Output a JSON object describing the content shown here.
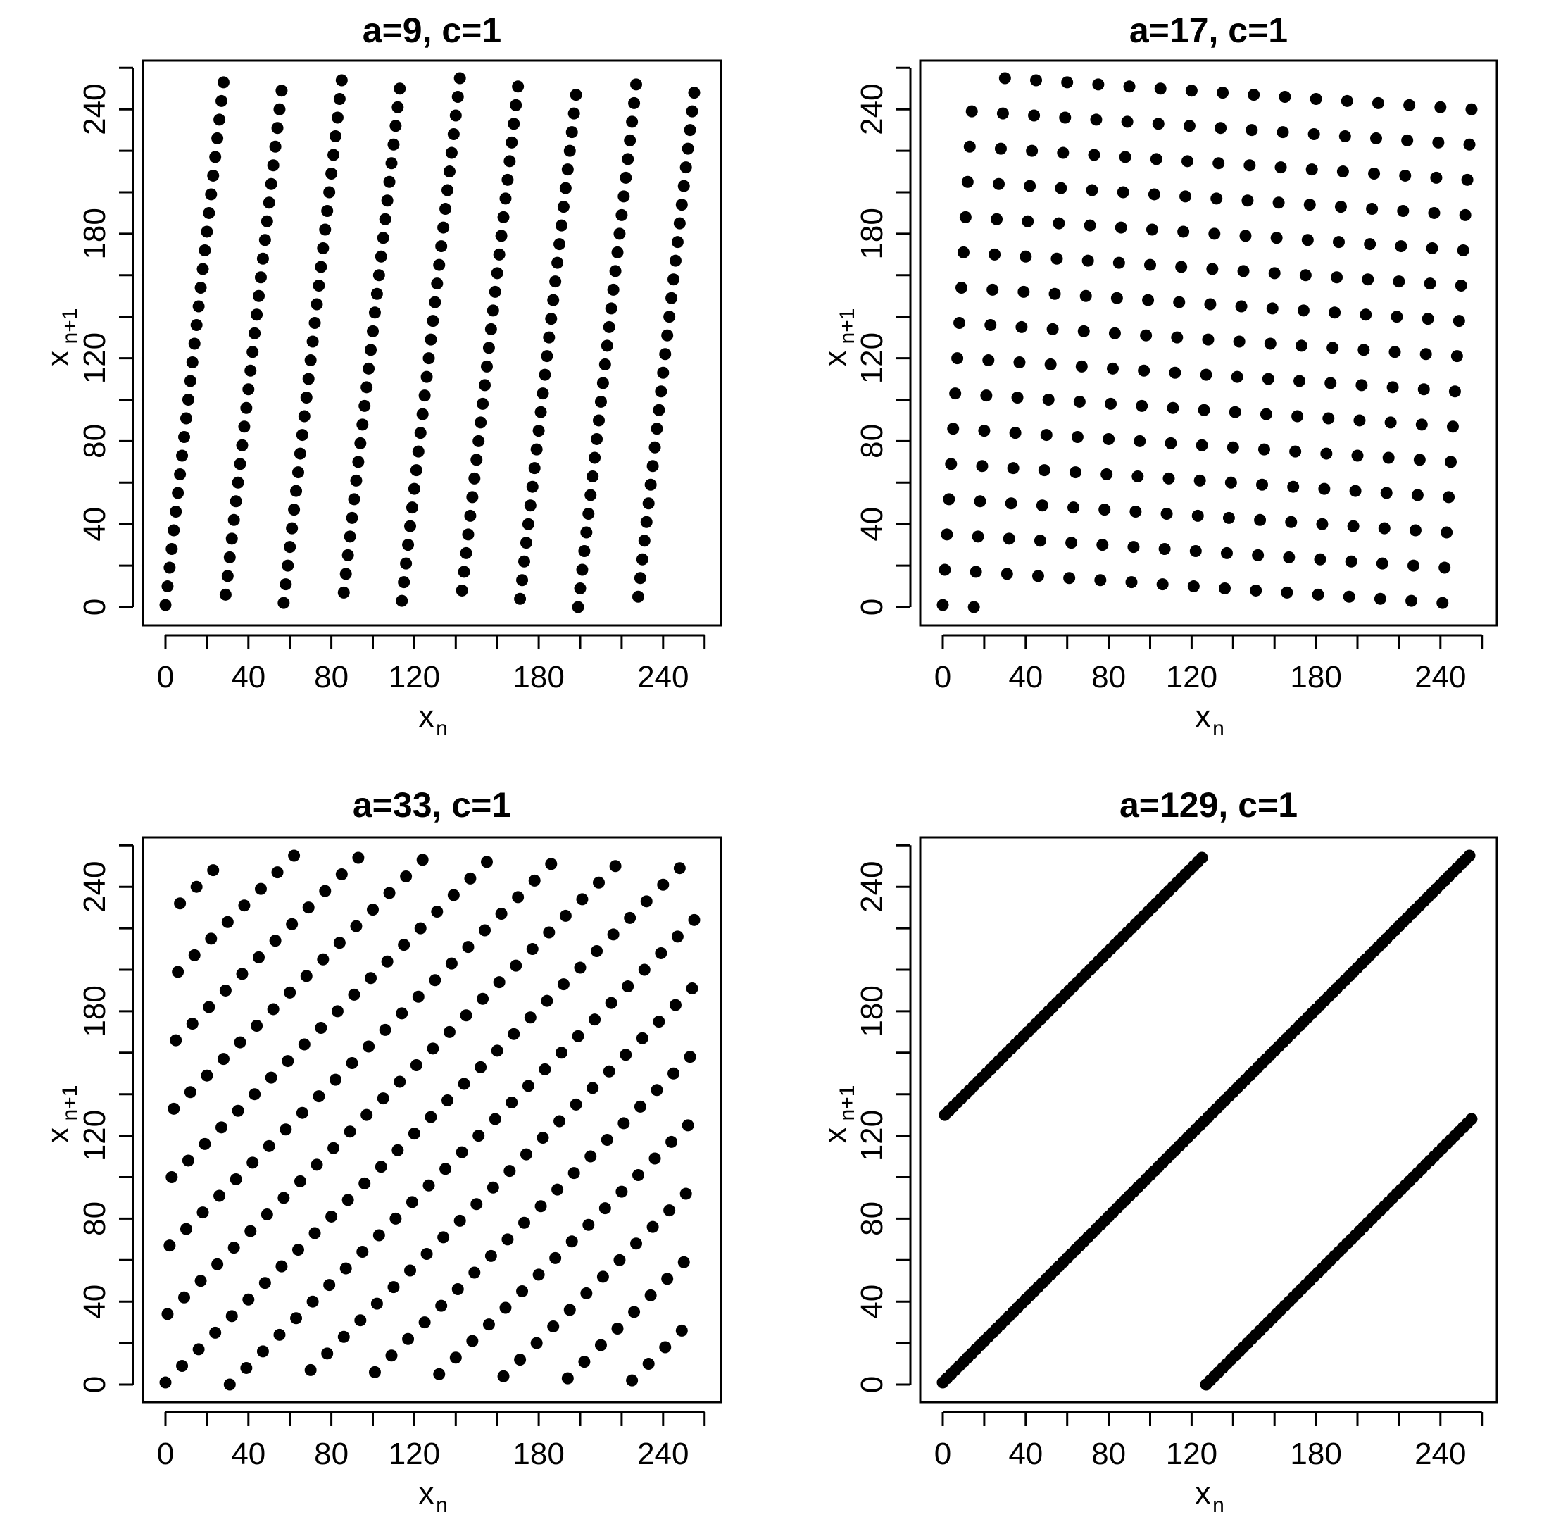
{
  "chart_data": [
    {
      "type": "scatter",
      "title": "a=9, c=1",
      "a": 9,
      "c": 1,
      "m": 256,
      "x0": 0,
      "xlabel": "x",
      "xlabel_sub": "n",
      "ylabel": "x",
      "ylabel_sub": "n+1",
      "xlim": [
        0,
        256
      ],
      "ylim": [
        0,
        256
      ],
      "x_ticks": [
        "0",
        "40",
        "80",
        "120",
        "180",
        "240"
      ],
      "y_ticks": [
        "0",
        "40",
        "80",
        "120",
        "180",
        "240"
      ],
      "points_rule": "x_{n+1} = (a * x_n + c) mod 256 for every x_n in 0..255",
      "grid": false
    },
    {
      "type": "scatter",
      "title": "a=17, c=1",
      "a": 17,
      "c": 1,
      "m": 256,
      "x0": 0,
      "xlabel": "x",
      "xlabel_sub": "n",
      "ylabel": "x",
      "ylabel_sub": "n+1",
      "xlim": [
        0,
        256
      ],
      "ylim": [
        0,
        256
      ],
      "x_ticks": [
        "0",
        "40",
        "80",
        "120",
        "180",
        "240"
      ],
      "y_ticks": [
        "0",
        "40",
        "80",
        "120",
        "180",
        "240"
      ],
      "points_rule": "x_{n+1} = (a * x_n + c) mod 256 for every x_n in 0..255",
      "grid": false
    },
    {
      "type": "scatter",
      "title": "a=33, c=1",
      "a": 33,
      "c": 1,
      "m": 256,
      "x0": 0,
      "xlabel": "x",
      "xlabel_sub": "n",
      "ylabel": "x",
      "ylabel_sub": "n+1",
      "xlim": [
        0,
        256
      ],
      "ylim": [
        0,
        256
      ],
      "x_ticks": [
        "0",
        "40",
        "80",
        "120",
        "180",
        "240"
      ],
      "y_ticks": [
        "0",
        "40",
        "80",
        "120",
        "180",
        "240"
      ],
      "points_rule": "x_{n+1} = (a * x_n + c) mod 256 for every x_n in 0..255",
      "grid": false
    },
    {
      "type": "scatter",
      "title": "a=129, c=1",
      "a": 129,
      "c": 1,
      "m": 256,
      "x0": 0,
      "xlabel": "x",
      "xlabel_sub": "n",
      "ylabel": "x",
      "ylabel_sub": "n+1",
      "xlim": [
        0,
        256
      ],
      "ylim": [
        0,
        256
      ],
      "x_ticks": [
        "0",
        "40",
        "80",
        "120",
        "180",
        "240"
      ],
      "y_ticks": [
        "0",
        "40",
        "80",
        "120",
        "180",
        "240"
      ],
      "points_rule": "x_{n+1} = (a * x_n + c) mod 256 for every x_n in 0..255",
      "grid": false
    }
  ],
  "colors": {
    "points": "#000000",
    "axes": "#000000",
    "background": "#ffffff"
  }
}
